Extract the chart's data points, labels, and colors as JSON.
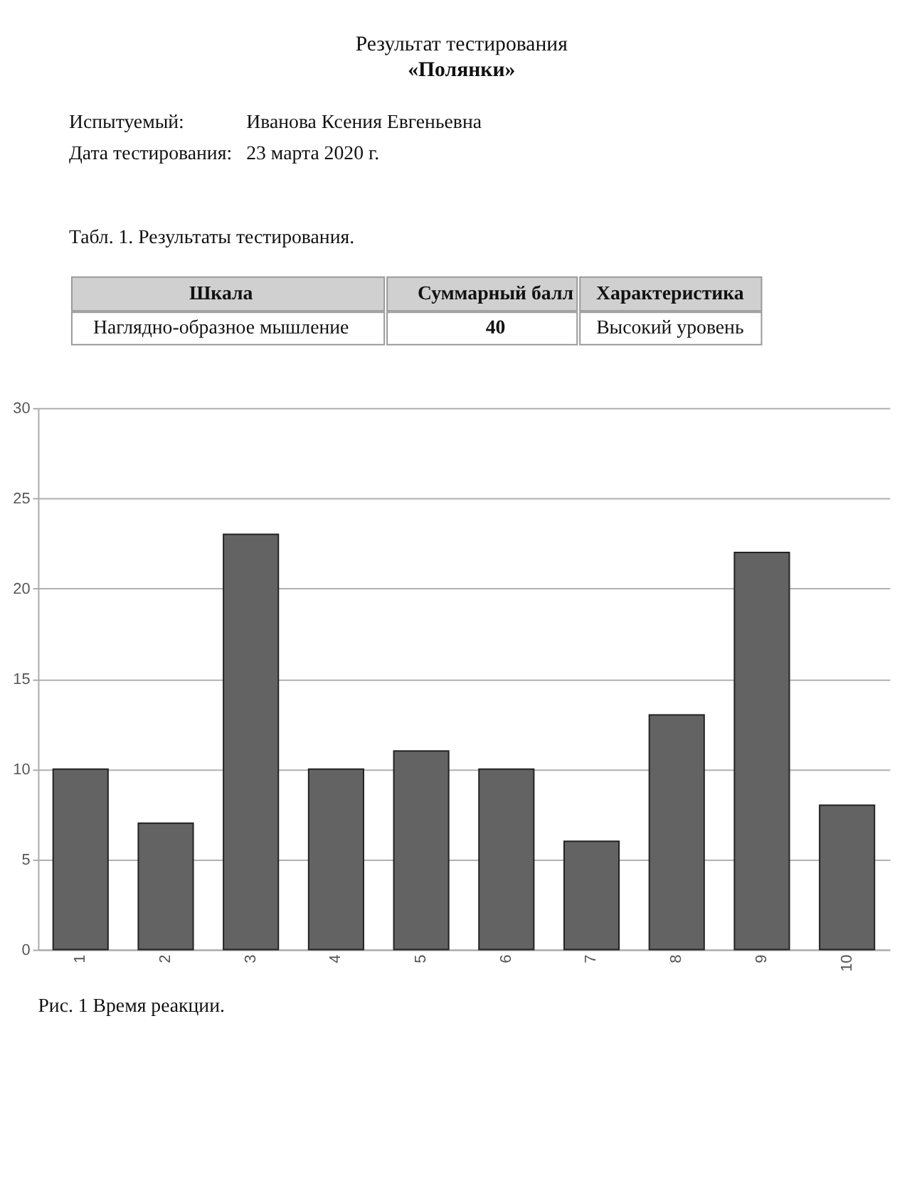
{
  "chart_data": {
    "type": "bar",
    "title": "Результат тестирования",
    "subtitle": "«Полянки»",
    "annotations": [
      "Испытуемый:",
      "Иванова Ксения Евгеньевна",
      "Дата тестирования:",
      "23 марта 2020 г.",
      "Табл. 1. Результаты тестирования.",
      "Шкала",
      "Суммарный балл",
      "Характеристика",
      "Наглядно-образное мышление",
      "40",
      "Высокий уровень",
      "Рис. 1 Время реакции."
    ],
    "categories": [
      "1",
      "2",
      "3",
      "4",
      "5",
      "6",
      "7",
      "8",
      "9",
      "10"
    ],
    "values": [
      10,
      7,
      23,
      10,
      11,
      10,
      6,
      13,
      22,
      8
    ],
    "color": "#636363",
    "ylim": [
      0,
      30
    ],
    "yticks": [
      0,
      5,
      10,
      15,
      20,
      25,
      30
    ],
    "grid": "y"
  }
}
